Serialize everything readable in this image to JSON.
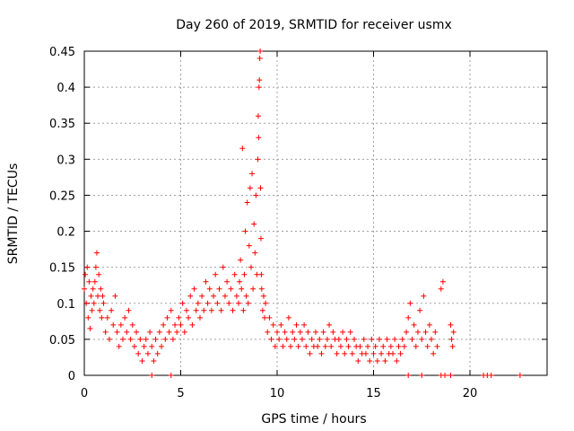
{
  "chart_data": {
    "type": "scatter",
    "title": "Day 260 of 2019, SRMTID for receiver usmx",
    "xlabel": "GPS time / hours",
    "ylabel": "SRMTID / TECUs",
    "xlim": [
      0,
      24
    ],
    "ylim": [
      0,
      0.45
    ],
    "x_ticks": [
      0,
      5,
      10,
      15,
      20
    ],
    "y_ticks": [
      0,
      0.05,
      0.1,
      0.15,
      0.2,
      0.25,
      0.3,
      0.35,
      0.4,
      0.45
    ],
    "x_tick_labels": [
      "0",
      "5",
      "10",
      "15",
      "20"
    ],
    "y_tick_labels": [
      "0",
      "0.05",
      "0.1",
      "0.15",
      "0.2",
      "0.25",
      "0.3",
      "0.35",
      "0.4",
      "0.45"
    ],
    "grid": true,
    "marker": "+",
    "marker_color": "#ff0000",
    "series": [
      {
        "name": "SRMTID",
        "points": [
          [
            0.0,
            0.12
          ],
          [
            0.05,
            0.14
          ],
          [
            0.1,
            0.1
          ],
          [
            0.15,
            0.15
          ],
          [
            0.2,
            0.08
          ],
          [
            0.25,
            0.13
          ],
          [
            0.3,
            0.065
          ],
          [
            0.35,
            0.11
          ],
          [
            0.4,
            0.09
          ],
          [
            0.45,
            0.12
          ],
          [
            0.5,
            0.1
          ],
          [
            0.55,
            0.13
          ],
          [
            0.6,
            0.15
          ],
          [
            0.65,
            0.17
          ],
          [
            0.7,
            0.11
          ],
          [
            0.75,
            0.14
          ],
          [
            0.8,
            0.09
          ],
          [
            0.85,
            0.12
          ],
          [
            0.9,
            0.08
          ],
          [
            0.95,
            0.11
          ],
          [
            1.0,
            0.1
          ],
          [
            1.1,
            0.06
          ],
          [
            1.2,
            0.08
          ],
          [
            1.3,
            0.05
          ],
          [
            1.4,
            0.09
          ],
          [
            1.5,
            0.07
          ],
          [
            1.6,
            0.11
          ],
          [
            1.7,
            0.06
          ],
          [
            1.8,
            0.04
          ],
          [
            1.9,
            0.07
          ],
          [
            2.0,
            0.05
          ],
          [
            2.1,
            0.08
          ],
          [
            2.2,
            0.06
          ],
          [
            2.3,
            0.09
          ],
          [
            2.4,
            0.05
          ],
          [
            2.5,
            0.07
          ],
          [
            2.6,
            0.04
          ],
          [
            2.7,
            0.06
          ],
          [
            2.8,
            0.03
          ],
          [
            2.9,
            0.05
          ],
          [
            3.0,
            0.02
          ],
          [
            3.1,
            0.04
          ],
          [
            3.2,
            0.05
          ],
          [
            3.3,
            0.03
          ],
          [
            3.4,
            0.06
          ],
          [
            3.5,
            0.04
          ],
          [
            3.6,
            0.02
          ],
          [
            3.7,
            0.05
          ],
          [
            3.8,
            0.03
          ],
          [
            3.9,
            0.06
          ],
          [
            4.0,
            0.04
          ],
          [
            4.1,
            0.07
          ],
          [
            4.2,
            0.05
          ],
          [
            4.3,
            0.08
          ],
          [
            4.4,
            0.06
          ],
          [
            4.5,
            0.09
          ],
          [
            4.6,
            0.05
          ],
          [
            4.7,
            0.07
          ],
          [
            4.8,
            0.06
          ],
          [
            4.9,
            0.08
          ],
          [
            5.0,
            0.07
          ],
          [
            5.1,
            0.1
          ],
          [
            5.2,
            0.06
          ],
          [
            5.3,
            0.09
          ],
          [
            5.4,
            0.08
          ],
          [
            5.5,
            0.11
          ],
          [
            5.6,
            0.07
          ],
          [
            5.7,
            0.12
          ],
          [
            5.8,
            0.09
          ],
          [
            5.9,
            0.1
          ],
          [
            6.0,
            0.08
          ],
          [
            6.1,
            0.11
          ],
          [
            6.2,
            0.09
          ],
          [
            6.3,
            0.13
          ],
          [
            6.4,
            0.1
          ],
          [
            6.5,
            0.12
          ],
          [
            6.6,
            0.09
          ],
          [
            6.7,
            0.11
          ],
          [
            6.8,
            0.14
          ],
          [
            6.9,
            0.1
          ],
          [
            7.0,
            0.12
          ],
          [
            7.1,
            0.09
          ],
          [
            7.2,
            0.15
          ],
          [
            7.3,
            0.11
          ],
          [
            7.4,
            0.13
          ],
          [
            7.5,
            0.1
          ],
          [
            7.6,
            0.12
          ],
          [
            7.7,
            0.09
          ],
          [
            7.8,
            0.14
          ],
          [
            7.9,
            0.11
          ],
          [
            8.0,
            0.1
          ],
          [
            8.05,
            0.13
          ],
          [
            8.1,
            0.16
          ],
          [
            8.15,
            0.12
          ],
          [
            8.2,
            0.315
          ],
          [
            8.25,
            0.09
          ],
          [
            8.3,
            0.14
          ],
          [
            8.35,
            0.2
          ],
          [
            8.4,
            0.11
          ],
          [
            8.45,
            0.24
          ],
          [
            8.5,
            0.1
          ],
          [
            8.55,
            0.18
          ],
          [
            8.6,
            0.26
          ],
          [
            8.65,
            0.15
          ],
          [
            8.7,
            0.28
          ],
          [
            8.75,
            0.12
          ],
          [
            8.8,
            0.21
          ],
          [
            8.85,
            0.17
          ],
          [
            8.9,
            0.25
          ],
          [
            8.95,
            0.14
          ],
          [
            9.0,
            0.3
          ],
          [
            9.02,
            0.36
          ],
          [
            9.04,
            0.33
          ],
          [
            9.06,
            0.4
          ],
          [
            9.08,
            0.41
          ],
          [
            9.1,
            0.44
          ],
          [
            9.12,
            0.45
          ],
          [
            9.14,
            0.26
          ],
          [
            9.16,
            0.19
          ],
          [
            9.18,
            0.14
          ],
          [
            9.2,
            0.12
          ],
          [
            9.25,
            0.09
          ],
          [
            9.3,
            0.11
          ],
          [
            9.35,
            0.08
          ],
          [
            9.4,
            0.1
          ],
          [
            9.5,
            0.06
          ],
          [
            9.6,
            0.08
          ],
          [
            9.7,
            0.05
          ],
          [
            9.8,
            0.07
          ],
          [
            9.9,
            0.04
          ],
          [
            10.0,
            0.06
          ],
          [
            10.1,
            0.05
          ],
          [
            10.2,
            0.07
          ],
          [
            10.3,
            0.04
          ],
          [
            10.4,
            0.06
          ],
          [
            10.5,
            0.05
          ],
          [
            10.6,
            0.08
          ],
          [
            10.7,
            0.04
          ],
          [
            10.8,
            0.06
          ],
          [
            10.9,
            0.05
          ],
          [
            11.0,
            0.07
          ],
          [
            11.1,
            0.04
          ],
          [
            11.2,
            0.06
          ],
          [
            11.3,
            0.05
          ],
          [
            11.4,
            0.07
          ],
          [
            11.5,
            0.04
          ],
          [
            11.6,
            0.06
          ],
          [
            11.7,
            0.03
          ],
          [
            11.8,
            0.05
          ],
          [
            11.9,
            0.04
          ],
          [
            12.0,
            0.06
          ],
          [
            12.1,
            0.04
          ],
          [
            12.2,
            0.05
          ],
          [
            12.3,
            0.03
          ],
          [
            12.4,
            0.06
          ],
          [
            12.5,
            0.04
          ],
          [
            12.6,
            0.05
          ],
          [
            12.7,
            0.07
          ],
          [
            12.8,
            0.04
          ],
          [
            12.9,
            0.06
          ],
          [
            13.0,
            0.05
          ],
          [
            13.1,
            0.03
          ],
          [
            13.2,
            0.05
          ],
          [
            13.3,
            0.04
          ],
          [
            13.4,
            0.06
          ],
          [
            13.5,
            0.03
          ],
          [
            13.6,
            0.05
          ],
          [
            13.7,
            0.04
          ],
          [
            13.8,
            0.06
          ],
          [
            13.9,
            0.03
          ],
          [
            14.0,
            0.05
          ],
          [
            14.1,
            0.04
          ],
          [
            14.2,
            0.02
          ],
          [
            14.3,
            0.04
          ],
          [
            14.4,
            0.03
          ],
          [
            14.5,
            0.05
          ],
          [
            14.6,
            0.03
          ],
          [
            14.7,
            0.04
          ],
          [
            14.8,
            0.02
          ],
          [
            14.9,
            0.05
          ],
          [
            15.0,
            0.03
          ],
          [
            15.1,
            0.04
          ],
          [
            15.2,
            0.02
          ],
          [
            15.3,
            0.05
          ],
          [
            15.4,
            0.03
          ],
          [
            15.5,
            0.04
          ],
          [
            15.6,
            0.02
          ],
          [
            15.7,
            0.05
          ],
          [
            15.8,
            0.03
          ],
          [
            15.9,
            0.04
          ],
          [
            16.0,
            0.03
          ],
          [
            16.1,
            0.05
          ],
          [
            16.2,
            0.02
          ],
          [
            16.3,
            0.04
          ],
          [
            16.4,
            0.03
          ],
          [
            16.5,
            0.05
          ],
          [
            16.6,
            0.04
          ],
          [
            16.7,
            0.06
          ],
          [
            16.8,
            0.08
          ],
          [
            16.9,
            0.1
          ],
          [
            17.0,
            0.05
          ],
          [
            17.1,
            0.07
          ],
          [
            17.2,
            0.04
          ],
          [
            17.3,
            0.06
          ],
          [
            17.4,
            0.09
          ],
          [
            17.5,
            0.05
          ],
          [
            17.6,
            0.11
          ],
          [
            17.7,
            0.06
          ],
          [
            17.8,
            0.04
          ],
          [
            17.9,
            0.07
          ],
          [
            18.0,
            0.05
          ],
          [
            18.1,
            0.03
          ],
          [
            18.2,
            0.06
          ],
          [
            18.3,
            0.04
          ],
          [
            18.5,
            0.12
          ],
          [
            18.6,
            0.13
          ],
          [
            19.0,
            0.07
          ],
          [
            19.05,
            0.05
          ],
          [
            19.1,
            0.04
          ],
          [
            19.15,
            0.06
          ],
          [
            3.5,
            0.0
          ],
          [
            4.5,
            0.0
          ],
          [
            16.8,
            0.0
          ],
          [
            17.5,
            0.0
          ],
          [
            18.5,
            0.0
          ],
          [
            18.7,
            0.0
          ],
          [
            19.0,
            0.0
          ],
          [
            20.7,
            0.0
          ],
          [
            20.9,
            0.0
          ],
          [
            21.1,
            0.0
          ],
          [
            22.6,
            0.0
          ]
        ]
      }
    ]
  }
}
